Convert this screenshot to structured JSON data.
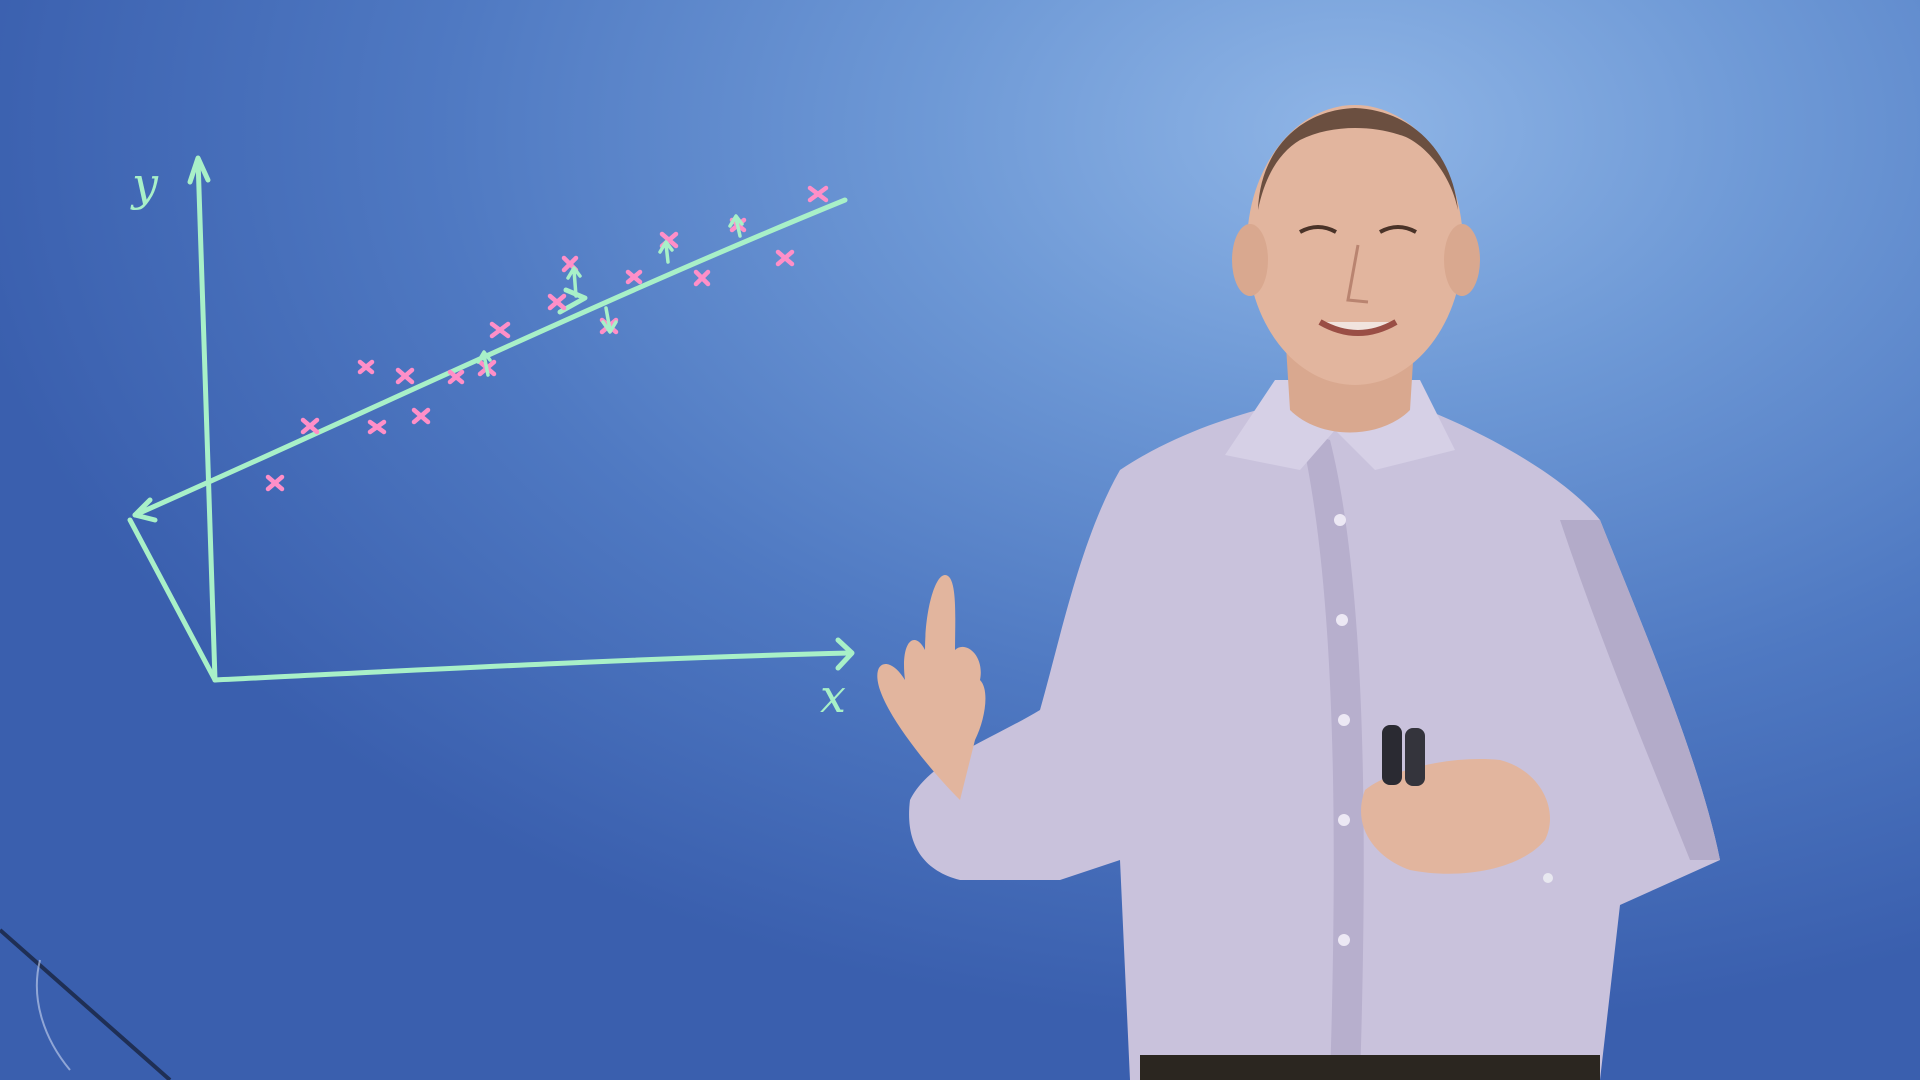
{
  "whiteboard": {
    "y_axis_label": "y",
    "x_axis_label": "x"
  },
  "colors": {
    "background_center": "#8fb5e6",
    "background_edge": "#3a5fae",
    "chalk_green": "#a8f0c8",
    "marker_pink": "#ff8fc8",
    "shirt_lavender": "#c9c2dc",
    "skin": "#e2b59e"
  },
  "presenter": {
    "description_icon": "presenter-figure",
    "holding": "marker-pens"
  }
}
